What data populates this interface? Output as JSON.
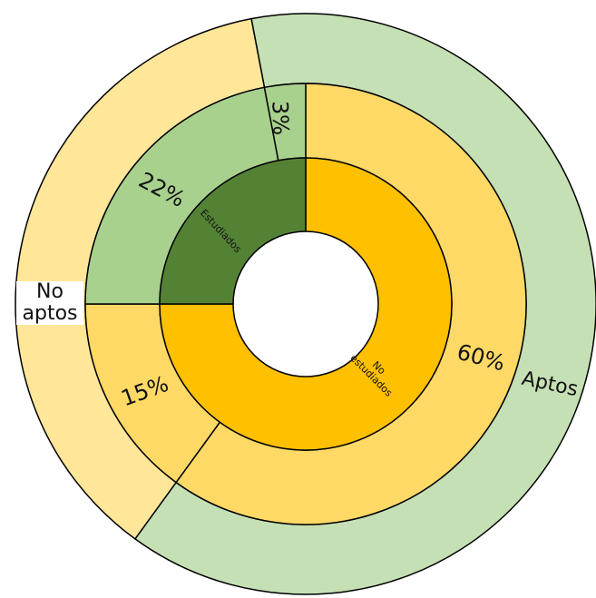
{
  "chart_data": {
    "type": "sunburst",
    "rings": [
      {
        "categories": [
          "No estudiados",
          "Estudiados"
        ],
        "values": [
          75,
          25
        ],
        "colors": [
          "#ffc000",
          "#548235"
        ]
      },
      {
        "values": [
          60,
          15,
          22,
          3
        ],
        "value_labels": [
          "60%",
          "15%",
          "22%",
          "3%"
        ],
        "colors": [
          "#ffd966",
          "#ffd966",
          "#a9d18e",
          "#a9d18e"
        ]
      },
      {
        "categories": [
          "Aptos",
          "No aptos"
        ],
        "values": [
          63,
          37
        ],
        "colors": [
          "#c5e0b4",
          "#ffe699"
        ]
      }
    ]
  }
}
